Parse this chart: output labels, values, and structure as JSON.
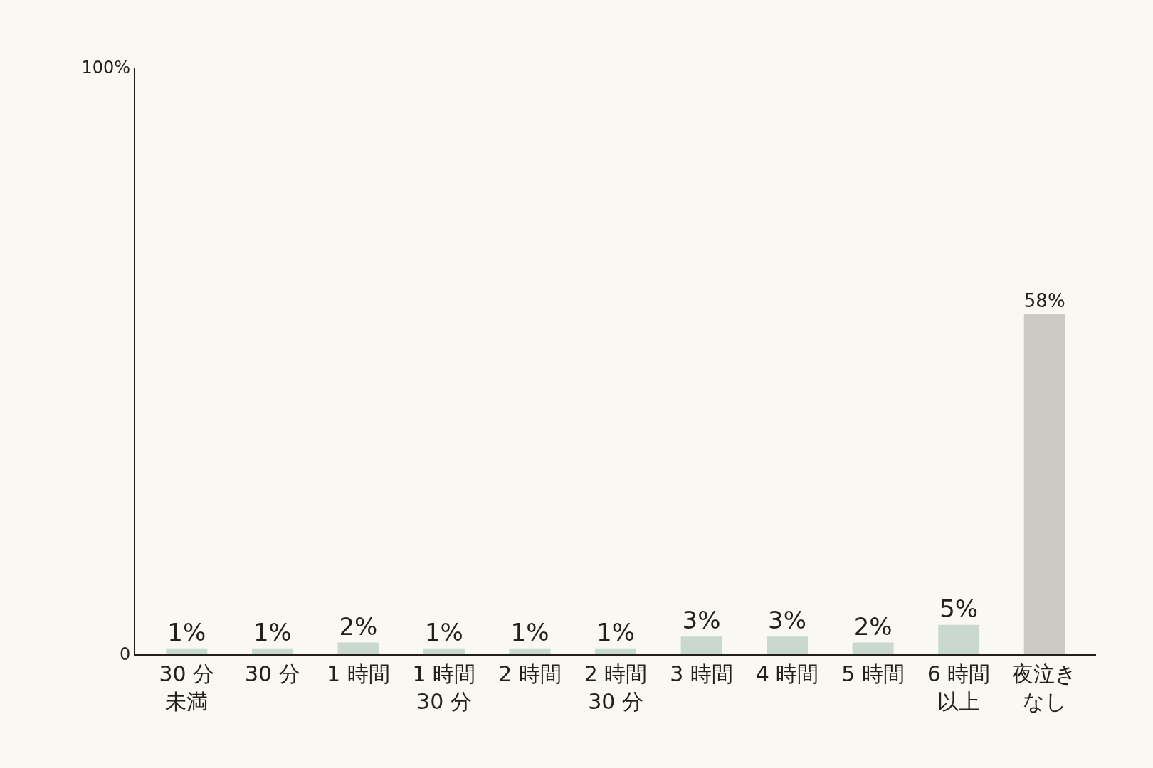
{
  "chart_data": {
    "type": "bar",
    "categories": [
      "30 分未満",
      "30 分",
      "1 時間",
      "1 時間30 分",
      "2 時間",
      "2 時間30 分",
      "3 時間",
      "4 時間",
      "5 時間",
      "6 時間以上",
      "夜泣きなし"
    ],
    "values": [
      1,
      1,
      2,
      1,
      1,
      1,
      3,
      3,
      2,
      5,
      58
    ],
    "colors": [
      "#c9d9cf",
      "#c9d9cf",
      "#c9d9cf",
      "#c9d9cf",
      "#c9d9cf",
      "#c9d9cf",
      "#c9d9cf",
      "#c9d9cf",
      "#c9d9cf",
      "#c9d9cf",
      "#cdcac5"
    ],
    "value_labels": [
      "1%",
      "1%",
      "2%",
      "1%",
      "1%",
      "1%",
      "3%",
      "3%",
      "2%",
      "5%",
      "58%"
    ],
    "ylim": [
      0,
      100
    ],
    "yticks": [
      {
        "value": 0,
        "label": "0"
      },
      {
        "value": 100,
        "label": "100%"
      }
    ],
    "grid": false,
    "legend": false
  }
}
